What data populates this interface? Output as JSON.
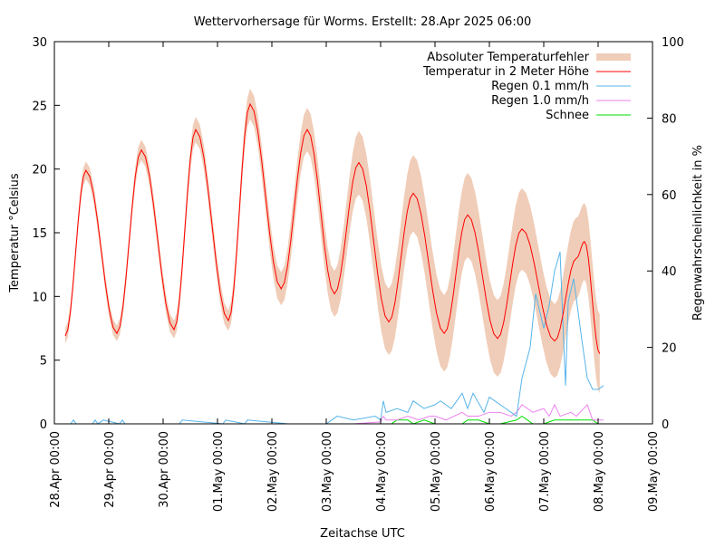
{
  "chart_data": {
    "type": "line",
    "title": "Wettervorhersage für Worms. Erstellt: 28.Apr 2025 06:00",
    "xlabel": "Zeitachse UTC",
    "ylabel": "Temperatur °Celsius",
    "y2label": "Regenwahrscheinlichkeit in %",
    "xlim_days": [
      0,
      11
    ],
    "ylim": [
      0,
      30
    ],
    "y2lim": [
      0,
      100
    ],
    "xticks": [
      "28.Apr 00:00",
      "29.Apr 00:00",
      "30.Apr 00:00",
      "01.May 00:00",
      "02.May 00:00",
      "03.May 00:00",
      "04.May 00:00",
      "05.May 00:00",
      "06.May 00:00",
      "07.May 00:00",
      "08.May 00:00",
      "09.May 00:00"
    ],
    "yticks": [
      0,
      5,
      10,
      15,
      20,
      25,
      30
    ],
    "y2ticks": [
      0,
      20,
      40,
      60,
      80,
      100
    ],
    "legend": {
      "placement": "top-right",
      "entries": [
        "Absoluter Temperaturfehler",
        "Temperatur in 2 Meter Höhe",
        "Regen 0.1 mm/h",
        "Regen 1.0 mm/h",
        "Schnee"
      ]
    },
    "colors": {
      "band": "#f0cdb8",
      "temp": "#ff0000",
      "rain01": "#56b4e9",
      "rain10": "#ee82ee",
      "snow": "#00dd00"
    },
    "temperature": {
      "day": [
        0.2,
        0.58,
        1.15,
        1.6,
        2.2,
        2.6,
        3.2,
        3.6,
        4.17,
        4.65,
        5.15,
        5.6,
        6.15,
        6.6,
        7.17,
        7.6,
        8.15,
        8.6,
        9.2,
        9.6,
        9.75,
        10.03
      ],
      "value": [
        6.9,
        19.9,
        7.1,
        21.5,
        7.4,
        23.1,
        8.1,
        25.1,
        10.6,
        23.1,
        10.2,
        20.5,
        8.0,
        18.1,
        7.1,
        16.4,
        6.7,
        15.3,
        6.5,
        13.0,
        14.3,
        5.5
      ],
      "error": [
        0.6,
        0.7,
        0.6,
        0.8,
        0.7,
        1.0,
        0.8,
        1.2,
        1.3,
        1.7,
        1.8,
        2.5,
        2.6,
        3.0,
        3.0,
        3.3,
        3.0,
        3.2,
        2.9,
        3.2,
        3.0,
        3.1
      ]
    },
    "rain01": {
      "day": [
        0,
        0.3,
        0.35,
        0.4,
        0.7,
        0.75,
        0.8,
        0.9,
        1.2,
        1.25,
        1.3,
        2.3,
        2.35,
        3.1,
        3.15,
        3.5,
        3.55,
        4.3,
        4.4,
        5.0,
        5.1,
        5.2,
        5.5,
        5.9,
        6.0,
        6.05,
        6.1,
        6.3,
        6.5,
        6.6,
        6.8,
        7.0,
        7.1,
        7.3,
        7.5,
        7.6,
        7.7,
        7.9,
        8.0,
        8.1,
        8.3,
        8.5,
        8.6,
        8.75,
        8.85,
        9.0,
        9.1,
        9.2,
        9.3,
        9.4,
        9.45,
        9.55,
        9.7,
        9.8,
        9.9,
        10.0,
        10.1
      ],
      "value": [
        0,
        0,
        1,
        0,
        0,
        1,
        0,
        1,
        0,
        1,
        0,
        0,
        1,
        0,
        1,
        0,
        1,
        0,
        0,
        0,
        1,
        2,
        1,
        2,
        1,
        6,
        3,
        4,
        3,
        6,
        4,
        5,
        6,
        4,
        8,
        4,
        8,
        3,
        7,
        6,
        4,
        2,
        12,
        20,
        34,
        25,
        31,
        40,
        45,
        10,
        32,
        38,
        22,
        12,
        9,
        9,
        10
      ]
    },
    "rain10": {
      "day": [
        0,
        5.0,
        5.2,
        5.5,
        6.0,
        6.05,
        6.1,
        6.3,
        6.5,
        6.7,
        6.9,
        7.0,
        7.2,
        7.5,
        7.6,
        7.8,
        8.0,
        8.2,
        8.4,
        8.5,
        8.6,
        8.8,
        9.0,
        9.1,
        9.2,
        9.3,
        9.5,
        9.6,
        9.8,
        9.9,
        10.1
      ],
      "value": [
        0,
        0,
        0,
        0,
        0.5,
        2,
        1,
        1,
        2,
        1,
        2,
        2,
        1,
        3,
        2,
        2,
        3,
        3,
        2,
        3,
        5,
        3,
        4,
        2,
        5,
        2,
        3,
        2,
        5,
        1,
        1
      ]
    },
    "snow": {
      "day": [
        6.0,
        6.2,
        6.3,
        6.5,
        6.6,
        6.8,
        7.0,
        7.5,
        7.6,
        7.8,
        8.0,
        8.2,
        8.5,
        8.6,
        8.7,
        8.8,
        9.0,
        9.2,
        9.9,
        10.0
      ],
      "value": [
        0,
        0,
        1,
        1,
        0,
        1,
        0,
        0,
        1,
        1,
        0,
        0,
        1,
        2,
        1,
        0,
        0,
        1,
        1,
        0
      ]
    }
  }
}
